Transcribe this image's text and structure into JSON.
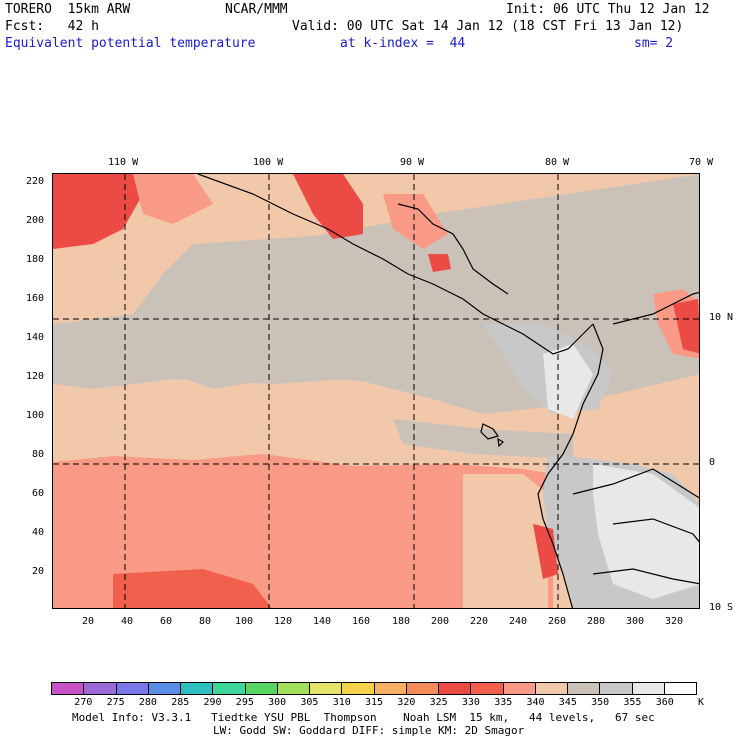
{
  "header": {
    "model": "TORERO  15km ARW",
    "org": "NCAR/MMM",
    "init": "Init: 06 UTC Thu 12 Jan 12",
    "fcst": "Fcst:   42 h",
    "valid": "Valid: 00 UTC Sat 14 Jan 12 (18 CST Fri 13 Jan 12)",
    "field": "Equivalent potential temperature",
    "level": "at k-index =  44",
    "smooth": "sm= 2"
  },
  "map": {
    "top_lon_labels": [
      "110 W",
      "100 W",
      "90 W",
      "80 W",
      "70 W"
    ],
    "right_lat_labels": [
      "10 N",
      "0",
      "10 S"
    ],
    "left_y_labels": [
      "220",
      "200",
      "180",
      "160",
      "140",
      "120",
      "100",
      "80",
      "60",
      "40",
      "20"
    ],
    "bottom_x_labels": [
      "20",
      "40",
      "60",
      "80",
      "100",
      "120",
      "140",
      "160",
      "180",
      "200",
      "220",
      "240",
      "260",
      "280",
      "300",
      "320"
    ]
  },
  "colorbar": {
    "labels": [
      "270",
      "275",
      "280",
      "285",
      "290",
      "295",
      "300",
      "305",
      "310",
      "315",
      "320",
      "325",
      "330",
      "335",
      "340",
      "345",
      "350",
      "355",
      "360"
    ],
    "unit": "K",
    "colors": [
      "#c853c8",
      "#9a6ad6",
      "#7a78e8",
      "#5a8ee6",
      "#2ec0c0",
      "#3ed69a",
      "#5ad462",
      "#a4e05a",
      "#e4e46a",
      "#f4d24c",
      "#f4b064",
      "#f48c5a",
      "#ec4a44",
      "#f0604c",
      "#f89a86",
      "#f2c8aa",
      "#cac2b8",
      "#c8c8c8",
      "#e8e8e8",
      "#ffffff"
    ]
  },
  "footer": {
    "line1": "Model Info: V3.3.1   Tiedtke YSU PBL  Thompson    Noah LSM  15 km,   44 levels,   67 sec",
    "line2": "LW: Godd SW: Goddard DIFF: simple KM: 2D Smagor"
  }
}
